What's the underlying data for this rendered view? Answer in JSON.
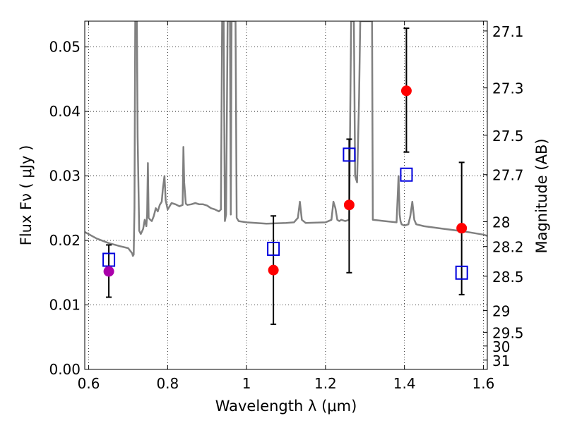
{
  "chart_data": {
    "type": "scatter",
    "title": "",
    "xlabel": "Wavelength  λ (μm)",
    "ylabel": "Flux  Fν  ( μJy )",
    "y2label": "Magnitude (AB)",
    "xlim": [
      0.59,
      1.61
    ],
    "ylim": [
      0.0,
      0.054
    ],
    "grid": true,
    "x_ticks": [
      0.6,
      0.8,
      1.0,
      1.2,
      1.4,
      1.6
    ],
    "x_tick_labels": [
      "0.6",
      "0.8",
      "1",
      "1.2",
      "1.4",
      "1.6"
    ],
    "y_ticks": [
      0.0,
      0.01,
      0.02,
      0.03,
      0.04,
      0.05
    ],
    "y_tick_labels": [
      "0.00",
      "0.01",
      "0.02",
      "0.03",
      "0.04",
      "0.05"
    ],
    "y2_ticks": [
      27.1,
      27.3,
      27.5,
      27.7,
      28.0,
      28.2,
      28.5,
      29.0,
      29.5,
      30.0,
      31.0
    ],
    "y2_tick_labels": [
      "27.1",
      "27.3",
      "27.5",
      "27.7",
      "28",
      "28.2",
      "28.5",
      "29",
      "29.5",
      "30",
      "31"
    ],
    "series": [
      {
        "role": "model",
        "style": "line",
        "color": "#808080",
        "x": [
          0.59,
          0.62,
          0.65,
          0.68,
          0.7,
          0.71,
          0.712,
          0.714,
          0.716,
          0.718,
          0.72,
          0.722,
          0.724,
          0.728,
          0.732,
          0.738,
          0.742,
          0.746,
          0.748,
          0.75,
          0.752,
          0.756,
          0.76,
          0.765,
          0.77,
          0.775,
          0.78,
          0.785,
          0.788,
          0.792,
          0.795,
          0.8,
          0.81,
          0.82,
          0.83,
          0.838,
          0.84,
          0.842,
          0.846,
          0.85,
          0.86,
          0.87,
          0.88,
          0.89,
          0.9,
          0.91,
          0.92,
          0.93,
          0.935,
          0.938,
          0.94,
          0.942,
          0.945,
          0.948,
          0.952,
          0.955,
          0.958,
          0.96,
          0.962,
          0.965,
          0.968,
          0.97,
          0.972,
          0.975,
          0.98,
          1.0,
          1.05,
          1.1,
          1.12,
          1.13,
          1.135,
          1.14,
          1.15,
          1.2,
          1.215,
          1.22,
          1.225,
          1.23,
          1.235,
          1.24,
          1.25,
          1.26,
          1.265,
          1.268,
          1.27,
          1.272,
          1.275,
          1.28,
          1.285,
          1.288,
          1.29,
          1.292,
          1.295,
          1.3,
          1.305,
          1.31,
          1.315,
          1.318,
          1.32,
          1.35,
          1.38,
          1.385,
          1.388,
          1.39,
          1.393,
          1.4,
          1.41,
          1.415,
          1.42,
          1.425,
          1.43,
          1.45,
          1.5,
          1.55,
          1.6,
          1.61
        ],
        "y": [
          0.0213,
          0.0203,
          0.0196,
          0.0191,
          0.0188,
          0.018,
          0.0176,
          0.0178,
          0.025,
          0.054,
          0.054,
          0.054,
          0.036,
          0.0215,
          0.021,
          0.0218,
          0.0232,
          0.0222,
          0.024,
          0.032,
          0.0235,
          0.0232,
          0.023,
          0.0238,
          0.025,
          0.0245,
          0.0255,
          0.026,
          0.028,
          0.03,
          0.0262,
          0.0248,
          0.0258,
          0.0256,
          0.0253,
          0.0255,
          0.0345,
          0.029,
          0.0257,
          0.0255,
          0.0256,
          0.0258,
          0.0256,
          0.0256,
          0.0254,
          0.025,
          0.0248,
          0.0245,
          0.0248,
          0.054,
          0.054,
          0.054,
          0.023,
          0.024,
          0.054,
          0.054,
          0.054,
          0.024,
          0.054,
          0.054,
          0.054,
          0.054,
          0.054,
          0.0235,
          0.023,
          0.0228,
          0.0226,
          0.0227,
          0.0228,
          0.0235,
          0.026,
          0.0232,
          0.0227,
          0.0228,
          0.0232,
          0.026,
          0.025,
          0.0232,
          0.023,
          0.0232,
          0.023,
          0.0232,
          0.054,
          0.054,
          0.054,
          0.054,
          0.03,
          0.029,
          0.042,
          0.054,
          0.054,
          0.054,
          0.054,
          0.054,
          0.054,
          0.054,
          0.054,
          0.054,
          0.0232,
          0.023,
          0.0228,
          0.03,
          0.024,
          0.023,
          0.0225,
          0.0223,
          0.0225,
          0.0238,
          0.026,
          0.0232,
          0.0225,
          0.0222,
          0.0218,
          0.0214,
          0.0209,
          0.0207
        ]
      },
      {
        "role": "model-photometry",
        "style": "open-square",
        "color": "#0000dd",
        "x": [
          0.651,
          1.068,
          1.26,
          1.405,
          1.545
        ],
        "y": [
          0.017,
          0.0187,
          0.0333,
          0.0302,
          0.015
        ]
      },
      {
        "role": "observed",
        "style": "filled-circle",
        "color": "#ff0000",
        "x": [
          0.651,
          1.068,
          1.26,
          1.405,
          1.545
        ],
        "y": [
          0.0152,
          0.0154,
          0.0255,
          0.0432,
          0.0219
        ],
        "yerr_low": [
          0.0112,
          0.007,
          0.015,
          0.0337,
          0.0116
        ],
        "yerr_high": [
          0.0193,
          0.0238,
          0.0357,
          0.0529,
          0.0321
        ],
        "point_colors": [
          "#aa00aa",
          "#ff0000",
          "#ff0000",
          "#ff0000",
          "#ff0000"
        ]
      }
    ]
  }
}
